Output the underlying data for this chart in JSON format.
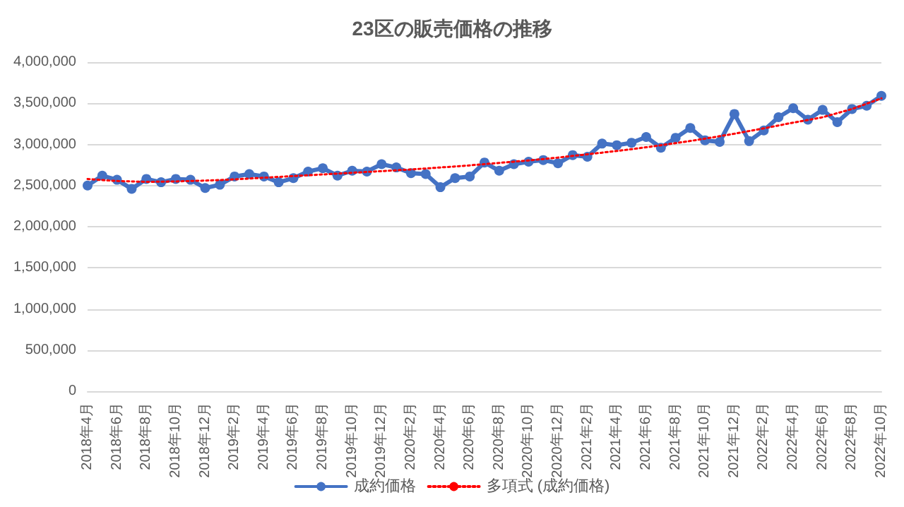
{
  "chart_data": {
    "type": "line",
    "title": "23区の販売価格の推移",
    "categories": [
      "2018年4月",
      null,
      "2018年6月",
      null,
      "2018年8月",
      null,
      "2018年10月",
      null,
      "2018年12月",
      null,
      "2019年2月",
      null,
      "2019年4月",
      null,
      "2019年6月",
      null,
      "2019年8月",
      null,
      "2019年10月",
      null,
      "2019年12月",
      null,
      "2020年2月",
      null,
      "2020年4月",
      null,
      "2020年6月",
      null,
      "2020年8月",
      null,
      "2020年10月",
      null,
      "2020年12月",
      null,
      "2021年2月",
      null,
      "2021年4月",
      null,
      "2021年6月",
      null,
      "2021年8月",
      null,
      "2021年10月",
      null,
      "2021年12月",
      null,
      "2022年2月",
      null,
      "2022年4月",
      null,
      "2022年6月",
      null,
      "2022年8月",
      null,
      "2022年10月"
    ],
    "series": [
      {
        "name": "成約価格",
        "color": "#4472c4",
        "marker": "circle",
        "line_style": "solid",
        "values": [
          2500000,
          2620000,
          2570000,
          2460000,
          2580000,
          2540000,
          2580000,
          2570000,
          2470000,
          2510000,
          2610000,
          2640000,
          2610000,
          2540000,
          2590000,
          2670000,
          2710000,
          2620000,
          2680000,
          2670000,
          2760000,
          2720000,
          2650000,
          2640000,
          2480000,
          2590000,
          2610000,
          2780000,
          2680000,
          2760000,
          2790000,
          2810000,
          2770000,
          2870000,
          2850000,
          3010000,
          2990000,
          3020000,
          3090000,
          2960000,
          3080000,
          3200000,
          3050000,
          3030000,
          3370000,
          3040000,
          3170000,
          3330000,
          3440000,
          3300000,
          3420000,
          3270000,
          3430000,
          3470000,
          3590000
        ]
      },
      {
        "name": "多項式 (成約価格)",
        "color": "#ff0000",
        "marker": "none",
        "line_style": "dotted",
        "values": [
          2580000,
          2567000,
          2555000,
          2550000,
          2545000,
          2547000,
          2550000,
          2555000,
          2560000,
          2567000,
          2575000,
          2585000,
          2595000,
          2605000,
          2615000,
          2625000,
          2635000,
          2645000,
          2655000,
          2665000,
          2675000,
          2685000,
          2695000,
          2707000,
          2720000,
          2732000,
          2745000,
          2760000,
          2775000,
          2790000,
          2805000,
          2822000,
          2840000,
          2860000,
          2880000,
          2900000,
          2920000,
          2942000,
          2965000,
          2990000,
          3015000,
          3042000,
          3070000,
          3100000,
          3130000,
          3162000,
          3195000,
          3230000,
          3265000,
          3297000,
          3330000,
          3380000,
          3430000,
          3495000,
          3560000
        ]
      }
    ],
    "ylim": [
      0,
      4000000
    ],
    "yticks": [
      {
        "value": 0,
        "label": "0"
      },
      {
        "value": 500000,
        "label": "500,000"
      },
      {
        "value": 1000000,
        "label": "1,000,000"
      },
      {
        "value": 1500000,
        "label": "1,500,000"
      },
      {
        "value": 2000000,
        "label": "2,000,000"
      },
      {
        "value": 2500000,
        "label": "2,500,000"
      },
      {
        "value": 3000000,
        "label": "3,000,000"
      },
      {
        "value": 3500000,
        "label": "3,500,000"
      },
      {
        "value": 4000000,
        "label": "4,000,000"
      }
    ],
    "grid": "y",
    "legend": "bottom"
  }
}
